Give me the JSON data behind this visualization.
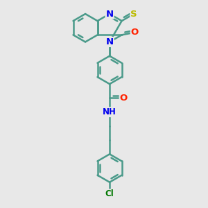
{
  "background_color": "#e8e8e8",
  "bond_color": "#4a9a8a",
  "bond_width": 1.8,
  "atom_colors": {
    "N": "#0000ee",
    "O": "#ff2200",
    "S": "#bbbb00",
    "Cl": "#007700",
    "H": "#444444"
  },
  "font_size": 8.5,
  "fig_width": 3.0,
  "fig_height": 3.0,
  "dpi": 100
}
